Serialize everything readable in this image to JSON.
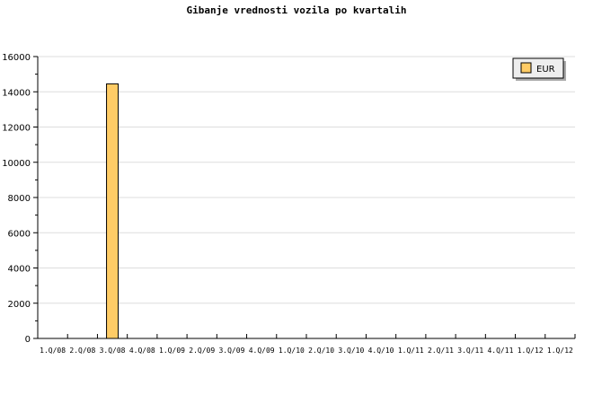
{
  "chart_data": {
    "type": "bar",
    "title": "Gibanje vrednosti vozila po kvartalih",
    "categories": [
      "1.Q/08",
      "2.Q/08",
      "3.Q/08",
      "4.Q/08",
      "1.Q/09",
      "2.Q/09",
      "3.Q/09",
      "4.Q/09",
      "1.Q/10",
      "2.Q/10",
      "3.Q/10",
      "4.Q/10",
      "1.Q/11",
      "2.Q/11",
      "3.Q/11",
      "4.Q/11",
      "1.Q/12",
      "1.Q/12"
    ],
    "series": [
      {
        "name": "EUR",
        "values": [
          0,
          0,
          14450,
          0,
          0,
          0,
          0,
          0,
          0,
          0,
          0,
          0,
          0,
          0,
          0,
          0,
          0,
          0
        ],
        "color": "#ffcc66"
      }
    ],
    "ylim": [
      0,
      16000
    ],
    "yticks": [
      0,
      2000,
      4000,
      6000,
      8000,
      10000,
      12000,
      14000,
      16000
    ],
    "grid": true,
    "legend": "top-right"
  }
}
